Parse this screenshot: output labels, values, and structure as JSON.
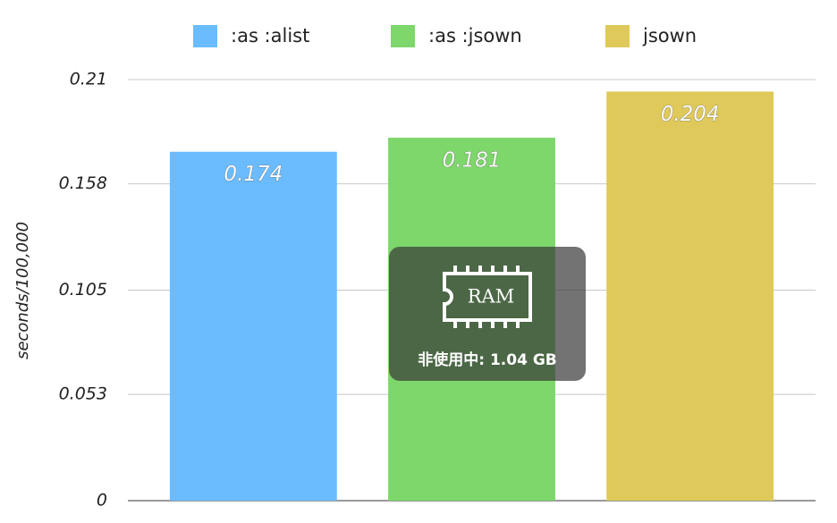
{
  "chart_data": {
    "type": "bar",
    "y_label": "seconds/100,000",
    "categories": [
      null
    ],
    "series": [
      {
        "name": ":as :alist",
        "color": "#6bbcff",
        "values": [
          0.174
        ]
      },
      {
        "name": ":as :jsown",
        "color": "#7dd76a",
        "values": [
          0.181
        ]
      },
      {
        "name": "jsown",
        "color": "#dfc95a",
        "values": [
          0.204
        ]
      }
    ],
    "ylim": [
      0,
      0.21
    ],
    "yticks": [
      0,
      0.053,
      0.105,
      0.158,
      0.21
    ],
    "grid": true,
    "legend": "top"
  },
  "overlay": {
    "icon_label": "RAM",
    "text": "非使用中: 1.04 GB"
  }
}
